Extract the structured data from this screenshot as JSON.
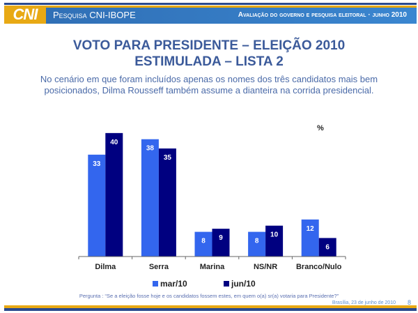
{
  "header": {
    "logo": "CNI",
    "left_title": "Pesquisa CNI-IBOPE",
    "right_title": "Avaliação do governo e pesquisa eleitoral · junho 2010"
  },
  "slide": {
    "title_line1": "VOTO PARA PRESIDENTE – ELEIÇÃO 2010",
    "title_line2": "ESTIMULADA – LISTA 2",
    "subtitle": "No cenário em que foram incluídos apenas os nomes dos três candidatos mais bem posicionados, Dilma Rousseff também assume a dianteira na corrida presidencial."
  },
  "chart_data": {
    "type": "bar",
    "title": "VOTO PARA PRESIDENTE – ELEIÇÃO 2010 – ESTIMULADA – LISTA 2",
    "unit_label": "%",
    "categories": [
      "Dilma",
      "Serra",
      "Marina",
      "NS/NR",
      "Branco/Nulo"
    ],
    "series": [
      {
        "name": "mar/10",
        "color": "#3366ee",
        "values": [
          33,
          38,
          8,
          8,
          12
        ]
      },
      {
        "name": "jun/10",
        "color": "#000080",
        "values": [
          40,
          35,
          9,
          10,
          6
        ]
      }
    ],
    "ylim": [
      0,
      42
    ],
    "grid": false,
    "legend_position": "bottom"
  },
  "footer": {
    "question": "Pergunta : “Se a eleição fosse hoje e os candidatos fossem estes, em quem o(a) sr(a) votaria para Presidente?”",
    "date": "Brasília, 23 de junho de 2010",
    "page": "8"
  },
  "colors": {
    "gold": "#e8a914",
    "navy": "#2a4a8e",
    "title_blue": "#3b5a9a"
  }
}
